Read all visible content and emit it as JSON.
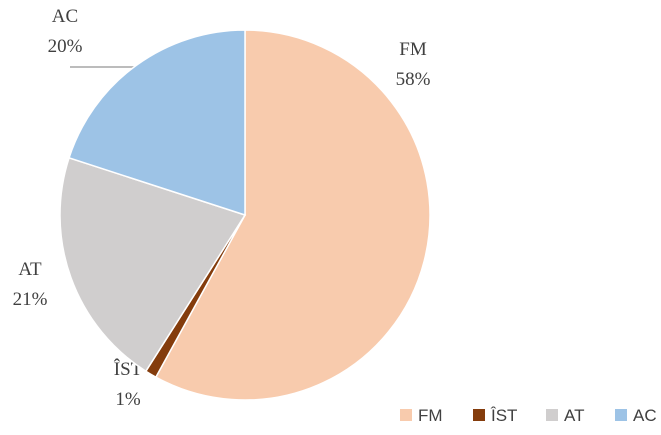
{
  "chart_data": {
    "type": "pie",
    "categories": [
      "FM",
      "ÎST",
      "AT",
      "AC"
    ],
    "values": [
      58,
      1,
      21,
      20
    ],
    "value_labels": [
      "58%",
      "1%",
      "21%",
      "20%"
    ],
    "colors": [
      "#f8cbad",
      "#843c0c",
      "#d0cece",
      "#9dc3e6"
    ],
    "legend": "bottom-right"
  }
}
